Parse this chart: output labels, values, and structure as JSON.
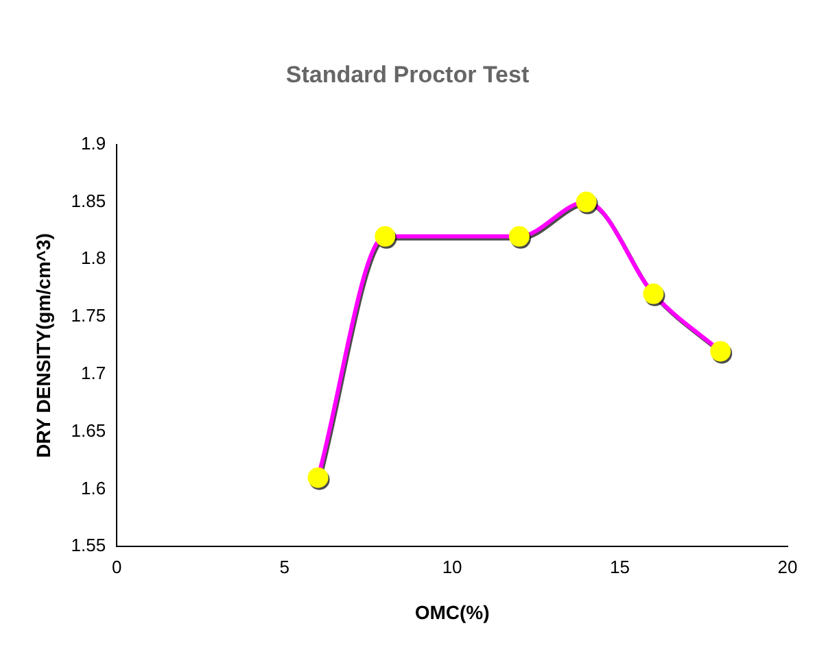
{
  "chart_data": {
    "type": "line",
    "title": "Standard Proctor Test",
    "xlabel": "OMC(%)",
    "ylabel": "DRY DENSITY(gm/cm^3)",
    "x": [
      6,
      8,
      12,
      14,
      16,
      18
    ],
    "series": [
      {
        "color": "#ff00ff",
        "colors": [
          "#ffff00",
          "#ffff00",
          "#ffff00",
          "#ffff00",
          "#ffff00",
          "#ffff00"
        ],
        "values": [
          1.61,
          1.82,
          1.82,
          1.85,
          1.77,
          1.72
        ]
      }
    ],
    "xlim": [
      0,
      20
    ],
    "xticks": [
      0,
      5,
      10,
      15,
      20
    ],
    "ylim": [
      1.55,
      1.9
    ],
    "yticks": [
      1.55,
      1.6,
      1.65,
      1.7,
      1.75,
      1.8,
      1.85,
      1.9
    ],
    "grid": false,
    "legend": false,
    "marker": "circle",
    "line_style": "solid"
  }
}
